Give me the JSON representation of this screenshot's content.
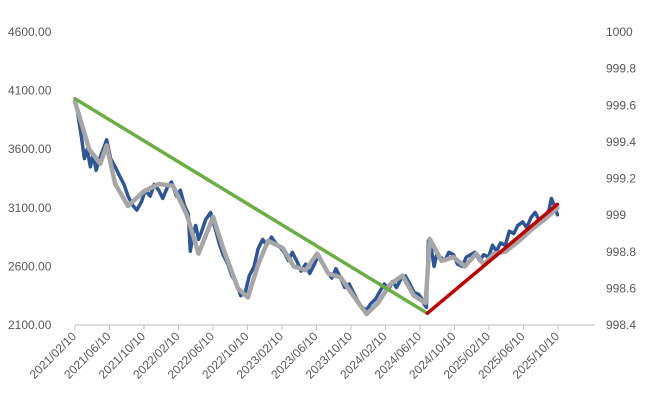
{
  "chart_data": {
    "type": "line",
    "grid": false,
    "legend": "none",
    "xlim": [
      "2021-02-10",
      "2026-02-10"
    ],
    "x_tick_labels": [
      "2021/02/10",
      "2021/06/10",
      "2021/10/10",
      "2022/02/10",
      "2022/06/10",
      "2022/10/10",
      "2023/02/10",
      "2023/06/10",
      "2023/10/10",
      "2024/02/10",
      "2024/06/10",
      "2024/10/10",
      "2025/02/10",
      "2025/06/10",
      "2025/10/10"
    ],
    "y_left": {
      "ylim": [
        2100,
        4600
      ],
      "tick_labels": [
        "2100.00",
        "2600.00",
        "3100.00",
        "3600.00",
        "4100.00",
        "4600.00"
      ],
      "tick_values": [
        2100,
        2600,
        3100,
        3600,
        4100,
        4600
      ]
    },
    "y_right": {
      "ylim": [
        998.4,
        1000
      ],
      "tick_labels": [
        "998.4",
        "998.6",
        "998.8",
        "999",
        "999.2",
        "999.4",
        "999.6",
        "999.8",
        "1000"
      ],
      "tick_values": [
        998.4,
        998.6,
        998.8,
        999.0,
        999.2,
        999.4,
        999.6,
        999.8,
        1000.0
      ]
    },
    "series": [
      {
        "axis": "left",
        "color": "#2E5597",
        "points": [
          [
            "2021-02-15",
            3980
          ],
          [
            "2021-03-05",
            3700
          ],
          [
            "2021-03-15",
            3520
          ],
          [
            "2021-03-25",
            3600
          ],
          [
            "2021-04-05",
            3450
          ],
          [
            "2021-04-15",
            3560
          ],
          [
            "2021-04-25",
            3420
          ],
          [
            "2021-05-05",
            3500
          ],
          [
            "2021-05-20",
            3600
          ],
          [
            "2021-06-01",
            3680
          ],
          [
            "2021-06-15",
            3520
          ],
          [
            "2021-07-01",
            3450
          ],
          [
            "2021-07-15",
            3380
          ],
          [
            "2021-08-01",
            3300
          ],
          [
            "2021-08-15",
            3200
          ],
          [
            "2021-09-01",
            3120
          ],
          [
            "2021-09-15",
            3080
          ],
          [
            "2021-10-01",
            3150
          ],
          [
            "2021-10-15",
            3250
          ],
          [
            "2021-11-01",
            3200
          ],
          [
            "2021-11-15",
            3300
          ],
          [
            "2021-12-01",
            3250
          ],
          [
            "2021-12-15",
            3180
          ],
          [
            "2022-01-01",
            3280
          ],
          [
            "2022-01-15",
            3320
          ],
          [
            "2022-02-01",
            3200
          ],
          [
            "2022-02-15",
            3250
          ],
          [
            "2022-03-01",
            3120
          ],
          [
            "2022-03-15",
            3050
          ],
          [
            "2022-03-22",
            2730
          ],
          [
            "2022-04-01",
            2880
          ],
          [
            "2022-04-10",
            2950
          ],
          [
            "2022-04-20",
            2830
          ],
          [
            "2022-05-01",
            2900
          ],
          [
            "2022-05-15",
            3000
          ],
          [
            "2022-06-01",
            3060
          ],
          [
            "2022-06-10",
            2980
          ],
          [
            "2022-06-20",
            2900
          ],
          [
            "2022-07-01",
            2800
          ],
          [
            "2022-07-15",
            2700
          ],
          [
            "2022-08-01",
            2620
          ],
          [
            "2022-08-15",
            2520
          ],
          [
            "2022-09-01",
            2450
          ],
          [
            "2022-09-15",
            2350
          ],
          [
            "2022-10-01",
            2380
          ],
          [
            "2022-10-15",
            2520
          ],
          [
            "2022-11-01",
            2600
          ],
          [
            "2022-11-15",
            2750
          ],
          [
            "2022-12-01",
            2830
          ],
          [
            "2022-12-15",
            2780
          ],
          [
            "2023-01-01",
            2850
          ],
          [
            "2023-01-15",
            2800
          ],
          [
            "2023-02-01",
            2760
          ],
          [
            "2023-02-15",
            2720
          ],
          [
            "2023-03-01",
            2650
          ],
          [
            "2023-03-15",
            2720
          ],
          [
            "2023-04-01",
            2640
          ],
          [
            "2023-04-15",
            2560
          ],
          [
            "2023-05-01",
            2620
          ],
          [
            "2023-05-15",
            2540
          ],
          [
            "2023-06-01",
            2620
          ],
          [
            "2023-06-15",
            2700
          ],
          [
            "2023-07-01",
            2620
          ],
          [
            "2023-07-15",
            2560
          ],
          [
            "2023-08-01",
            2500
          ],
          [
            "2023-08-15",
            2580
          ],
          [
            "2023-09-01",
            2500
          ],
          [
            "2023-09-15",
            2420
          ],
          [
            "2023-10-01",
            2450
          ],
          [
            "2023-10-15",
            2380
          ],
          [
            "2023-11-01",
            2300
          ],
          [
            "2023-11-15",
            2250
          ],
          [
            "2023-12-01",
            2230
          ],
          [
            "2023-12-15",
            2280
          ],
          [
            "2024-01-01",
            2320
          ],
          [
            "2024-01-15",
            2380
          ],
          [
            "2024-02-01",
            2450
          ],
          [
            "2024-02-15",
            2400
          ],
          [
            "2024-03-01",
            2470
          ],
          [
            "2024-03-15",
            2420
          ],
          [
            "2024-04-01",
            2500
          ],
          [
            "2024-04-15",
            2520
          ],
          [
            "2024-05-01",
            2450
          ],
          [
            "2024-05-15",
            2380
          ],
          [
            "2024-06-01",
            2360
          ],
          [
            "2024-06-10",
            2330
          ],
          [
            "2024-06-20",
            2280
          ],
          [
            "2024-06-28",
            2250
          ],
          [
            "2024-07-05",
            2820
          ],
          [
            "2024-07-15",
            2750
          ],
          [
            "2024-07-25",
            2600
          ],
          [
            "2024-08-05",
            2720
          ],
          [
            "2024-08-15",
            2680
          ],
          [
            "2024-09-01",
            2650
          ],
          [
            "2024-09-15",
            2720
          ],
          [
            "2024-10-01",
            2700
          ],
          [
            "2024-10-15",
            2620
          ],
          [
            "2024-11-01",
            2600
          ],
          [
            "2024-11-15",
            2680
          ],
          [
            "2024-12-01",
            2700
          ],
          [
            "2024-12-15",
            2720
          ],
          [
            "2025-01-01",
            2650
          ],
          [
            "2025-01-15",
            2700
          ],
          [
            "2025-02-01",
            2680
          ],
          [
            "2025-02-15",
            2780
          ],
          [
            "2025-03-01",
            2730
          ],
          [
            "2025-03-15",
            2800
          ],
          [
            "2025-04-01",
            2780
          ],
          [
            "2025-04-15",
            2900
          ],
          [
            "2025-05-01",
            2880
          ],
          [
            "2025-05-15",
            2950
          ],
          [
            "2025-06-01",
            2980
          ],
          [
            "2025-06-15",
            2930
          ],
          [
            "2025-07-01",
            3020
          ],
          [
            "2025-07-15",
            3060
          ],
          [
            "2025-08-01",
            2980
          ],
          [
            "2025-08-15",
            3000
          ],
          [
            "2025-09-01",
            3080
          ],
          [
            "2025-09-10",
            3180
          ],
          [
            "2025-09-20",
            3120
          ],
          [
            "2025-10-01",
            3040
          ]
        ]
      },
      {
        "axis": "right",
        "color": "#A6A6A6",
        "points": [
          [
            "2021-02-10",
            999.62
          ],
          [
            "2021-04-01",
            999.36
          ],
          [
            "2021-05-10",
            999.28
          ],
          [
            "2021-06-01",
            999.38
          ],
          [
            "2021-07-01",
            999.17
          ],
          [
            "2021-08-15",
            999.05
          ],
          [
            "2021-10-10",
            999.13
          ],
          [
            "2021-12-01",
            999.17
          ],
          [
            "2022-01-20",
            999.16
          ],
          [
            "2022-03-10",
            999.0
          ],
          [
            "2022-04-20",
            998.79
          ],
          [
            "2022-06-10",
            998.99
          ],
          [
            "2022-07-15",
            998.82
          ],
          [
            "2022-09-05",
            998.6
          ],
          [
            "2022-10-10",
            998.55
          ],
          [
            "2022-11-15",
            998.73
          ],
          [
            "2022-12-20",
            998.86
          ],
          [
            "2023-02-10",
            998.82
          ],
          [
            "2023-03-20",
            998.72
          ],
          [
            "2023-05-01",
            998.7
          ],
          [
            "2023-06-10",
            998.79
          ],
          [
            "2023-07-20",
            998.68
          ],
          [
            "2023-09-01",
            998.66
          ],
          [
            "2023-10-15",
            998.56
          ],
          [
            "2023-12-01",
            998.46
          ],
          [
            "2024-01-10",
            998.52
          ],
          [
            "2024-02-20",
            998.62
          ],
          [
            "2024-04-05",
            998.67
          ],
          [
            "2024-05-15",
            998.56
          ],
          [
            "2024-06-25",
            998.52
          ],
          [
            "2024-07-10",
            998.87
          ],
          [
            "2024-08-20",
            998.75
          ],
          [
            "2024-10-01",
            998.77
          ],
          [
            "2024-11-10",
            998.72
          ],
          [
            "2024-12-20",
            998.79
          ],
          [
            "2025-01-15",
            998.73
          ],
          [
            "2025-02-20",
            998.79
          ],
          [
            "2025-04-01",
            998.8
          ],
          [
            "2025-05-20",
            998.86
          ],
          [
            "2025-07-01",
            998.92
          ],
          [
            "2025-08-20",
            998.98
          ],
          [
            "2025-10-01",
            999.04
          ]
        ]
      },
      {
        "axis": "left",
        "color": "#6AAE45",
        "points": [
          [
            "2021-02-10",
            4030
          ],
          [
            "2024-07-01",
            2200
          ]
        ]
      },
      {
        "axis": "left",
        "color": "#C00000",
        "points": [
          [
            "2024-07-01",
            2200
          ],
          [
            "2025-10-01",
            3130
          ]
        ]
      }
    ]
  }
}
